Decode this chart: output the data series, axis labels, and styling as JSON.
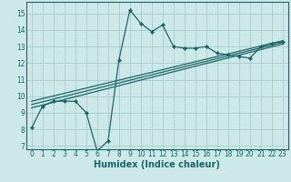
{
  "xlabel": "Humidex (Indice chaleur)",
  "bg_color": "#cde8e8",
  "grid_color": "#aacccc",
  "line_color": "#1a6666",
  "xlim": [
    -0.5,
    23.5
  ],
  "ylim": [
    6.8,
    15.7
  ],
  "yticks": [
    7,
    8,
    9,
    10,
    11,
    12,
    13,
    14,
    15
  ],
  "xticks": [
    0,
    1,
    2,
    3,
    4,
    5,
    6,
    7,
    8,
    9,
    10,
    11,
    12,
    13,
    14,
    15,
    16,
    17,
    18,
    19,
    20,
    21,
    22,
    23
  ],
  "main_line": {
    "x": [
      0,
      1,
      2,
      3,
      4,
      5,
      6,
      7,
      8,
      9,
      10,
      11,
      12,
      13,
      14,
      15,
      16,
      17,
      18,
      19,
      20,
      21,
      22,
      23
    ],
    "y": [
      8.1,
      9.4,
      9.7,
      9.7,
      9.7,
      9.0,
      6.7,
      7.3,
      12.2,
      15.2,
      14.4,
      13.9,
      14.3,
      13.0,
      12.9,
      12.9,
      13.0,
      12.6,
      12.5,
      12.4,
      12.3,
      13.0,
      13.2,
      13.3
    ]
  },
  "reg_lines": [
    {
      "x": [
        0,
        23
      ],
      "y": [
        9.3,
        13.15
      ]
    },
    {
      "x": [
        0,
        23
      ],
      "y": [
        9.5,
        13.25
      ]
    },
    {
      "x": [
        0,
        23
      ],
      "y": [
        9.7,
        13.35
      ]
    }
  ],
  "tick_fontsize": 5.5,
  "xlabel_fontsize": 7
}
